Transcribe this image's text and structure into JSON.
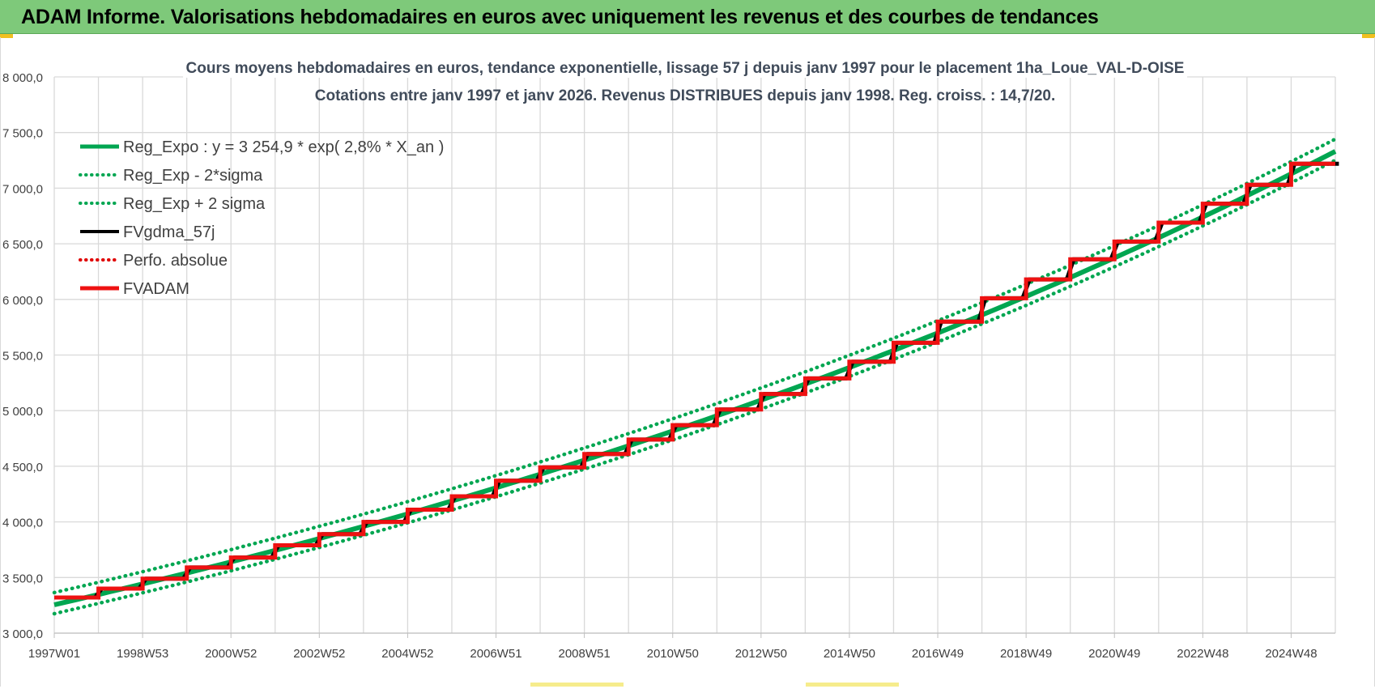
{
  "banner": {
    "title": "ADAM Informe. Valorisations hebdomadaires en euros avec uniquement les revenus et des courbes de tendances"
  },
  "colors": {
    "banner_bg": "#7ec97a",
    "reg_expo": "#00a651",
    "fvgdma": "#000000",
    "perfo": "#e00000",
    "fvadam": "#ee1111",
    "grid": "#d9d9d9"
  },
  "chart_data": {
    "type": "line",
    "title_line1": "Cours moyens hebdomadaires en euros, tendance exponentielle, lissage 57 j depuis janv 1997  pour le placement 1ha_Loue_VAL-D-OISE",
    "title_line2": "Cotations entre janv 1997 et janv 2026. Revenus DISTRIBUES depuis janv 1998.  Reg. croiss. : 14,7/20.",
    "x_range": [
      1997.0,
      2026.0
    ],
    "ylim": [
      3000,
      8000
    ],
    "y_ticks": [
      "3 000,0",
      "3 500,0",
      "4 000,0",
      "4 500,0",
      "5 000,0",
      "5 500,0",
      "6 000,0",
      "6 500,0",
      "7 000,0",
      "7 500,0",
      "8 000,0"
    ],
    "x_tick_labels": [
      "1997W01",
      "1998W53",
      "2000W52",
      "2002W52",
      "2004W52",
      "2006W51",
      "2008W51",
      "2010W50",
      "2012W50",
      "2014W50",
      "2016W49",
      "2018W49",
      "2020W49",
      "2022W48",
      "2024W48"
    ],
    "grid": true,
    "legend_position": "top-left",
    "series": [
      {
        "name": "Reg_Expo : y = 3 254,9 * exp( 2,8% *  X_an )",
        "style": "solid-thick",
        "color": "#00a651"
      },
      {
        "name": "Reg_Exp - 2*sigma",
        "style": "dotted",
        "color": "#00a651"
      },
      {
        "name": "Reg_Exp + 2 sigma",
        "style": "dotted",
        "color": "#00a651"
      },
      {
        "name": "FVgdma_57j",
        "style": "solid",
        "color": "#000000"
      },
      {
        "name": "Perfo. absolue",
        "style": "dotted",
        "color": "#e00000"
      },
      {
        "name": "FVADAM",
        "style": "solid-thick",
        "color": "#ee1111"
      }
    ],
    "regression": {
      "a": 3254.9,
      "rate": 0.028,
      "minus_2sigma_offset": -80,
      "plus_2sigma_offset": 110
    },
    "fvadam_steps": [
      {
        "year": 1997,
        "value": 3320
      },
      {
        "year": 1998,
        "value": 3400
      },
      {
        "year": 1999,
        "value": 3490
      },
      {
        "year": 2000,
        "value": 3590
      },
      {
        "year": 2001,
        "value": 3680
      },
      {
        "year": 2002,
        "value": 3790
      },
      {
        "year": 2003,
        "value": 3890
      },
      {
        "year": 2004,
        "value": 4000
      },
      {
        "year": 2005,
        "value": 4110
      },
      {
        "year": 2006,
        "value": 4230
      },
      {
        "year": 2007,
        "value": 4370
      },
      {
        "year": 2008,
        "value": 4490
      },
      {
        "year": 2009,
        "value": 4610
      },
      {
        "year": 2010,
        "value": 4740
      },
      {
        "year": 2011,
        "value": 4870
      },
      {
        "year": 2012,
        "value": 5010
      },
      {
        "year": 2013,
        "value": 5150
      },
      {
        "year": 2014,
        "value": 5290
      },
      {
        "year": 2015,
        "value": 5440
      },
      {
        "year": 2016,
        "value": 5610
      },
      {
        "year": 2017,
        "value": 5800
      },
      {
        "year": 2018,
        "value": 6010
      },
      {
        "year": 2019,
        "value": 6180
      },
      {
        "year": 2020,
        "value": 6360
      },
      {
        "year": 2021,
        "value": 6520
      },
      {
        "year": 2022,
        "value": 6690
      },
      {
        "year": 2023,
        "value": 6860
      },
      {
        "year": 2024,
        "value": 7030
      },
      {
        "year": 2025,
        "value": 7220
      },
      {
        "year": 2026,
        "value": 7220
      }
    ]
  }
}
